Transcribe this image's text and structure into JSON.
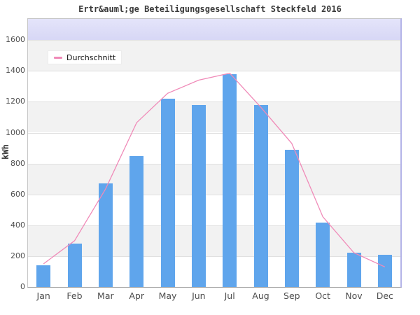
{
  "chart_data": {
    "type": "bar",
    "title": "Ertr&auml;ge Beteiligungsgesellschaft Steckfeld 2016",
    "ylabel": "kWh",
    "categories": [
      "Jan",
      "Feb",
      "Mar",
      "Apr",
      "May",
      "Jun",
      "Jul",
      "Aug",
      "Sep",
      "Oct",
      "Nov",
      "Dec"
    ],
    "series": [
      {
        "type": "bar",
        "color": "#5fa5ec",
        "values": [
          140,
          280,
          670,
          850,
          1220,
          1180,
          1378,
          1180,
          890,
          418,
          220,
          210
        ]
      },
      {
        "name": "Durchschnitt",
        "type": "line",
        "color": "#f08ab8",
        "values": [
          150,
          300,
          635,
          1065,
          1255,
          1340,
          1385,
          1165,
          930,
          455,
          222,
          130
        ]
      }
    ],
    "ylim": [
      0,
      1737
    ],
    "ytick_step": 200,
    "ytick_labels": [
      "0",
      "200",
      "400",
      "600",
      "800",
      "1000",
      "1200",
      "1400",
      "1600"
    ],
    "legend_position": "top-left",
    "grid": "horizontal-bands",
    "colors": {
      "band_gray": "#f2f2f2",
      "band_white": "#ffffff",
      "band_top_lavender_light": "#e4e4fa",
      "band_top_lavender_dark": "#d7d7f5",
      "gridline": "#e0e0e0",
      "axis_text": "#4d4d4d"
    }
  }
}
